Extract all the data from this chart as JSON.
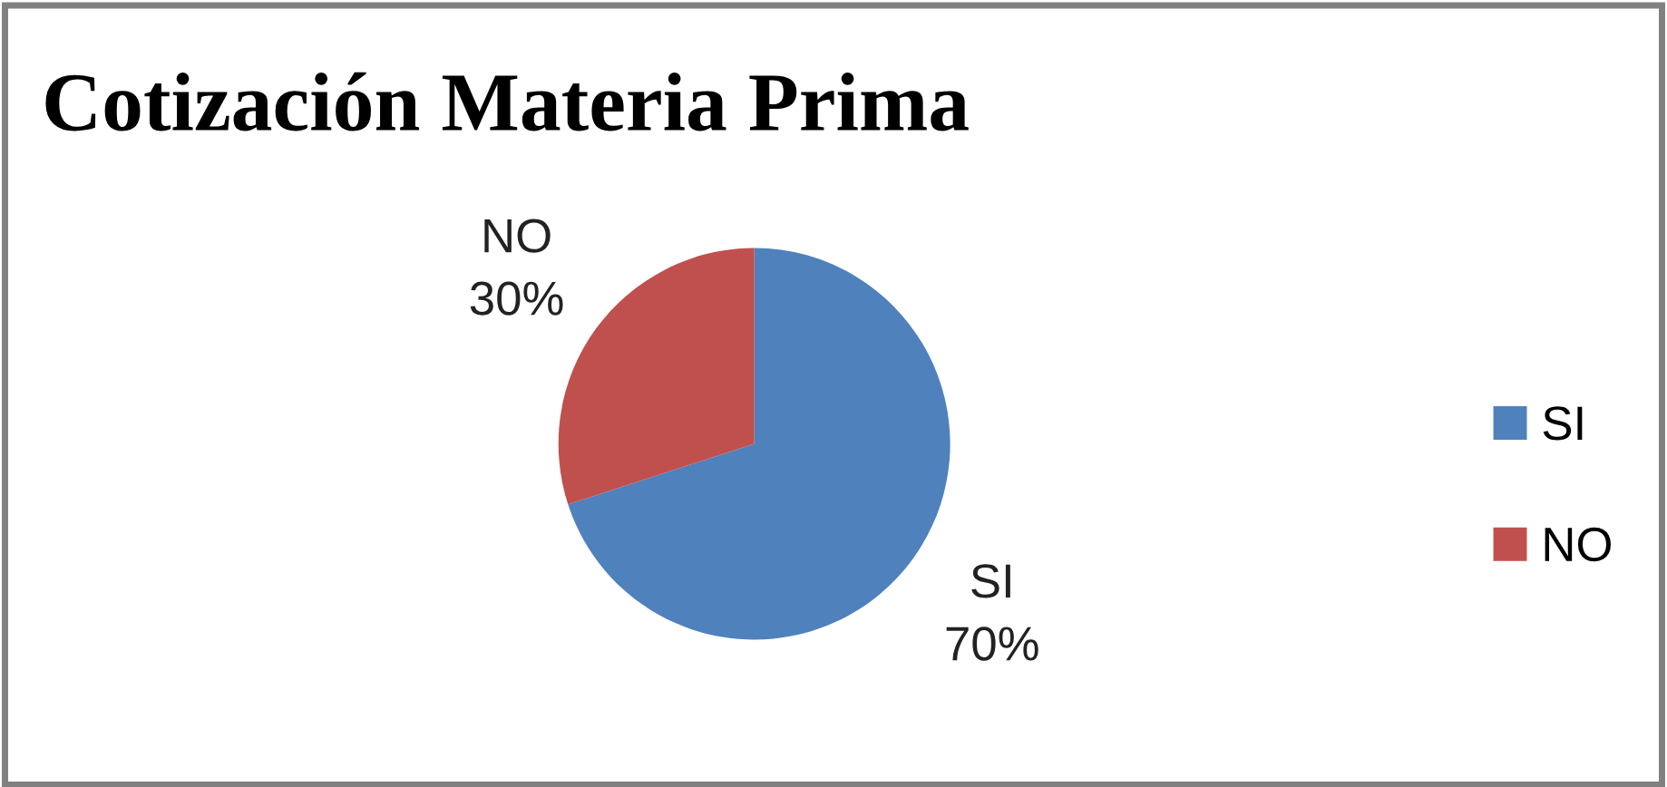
{
  "chart_data": {
    "type": "pie",
    "title": "Cotización Materia Prima",
    "categories": [
      "SI",
      "NO"
    ],
    "values": [
      70,
      30
    ],
    "colors": [
      "#4f81bd",
      "#c0504d"
    ],
    "value_labels": [
      "70%",
      "30%"
    ],
    "legend": "right"
  }
}
